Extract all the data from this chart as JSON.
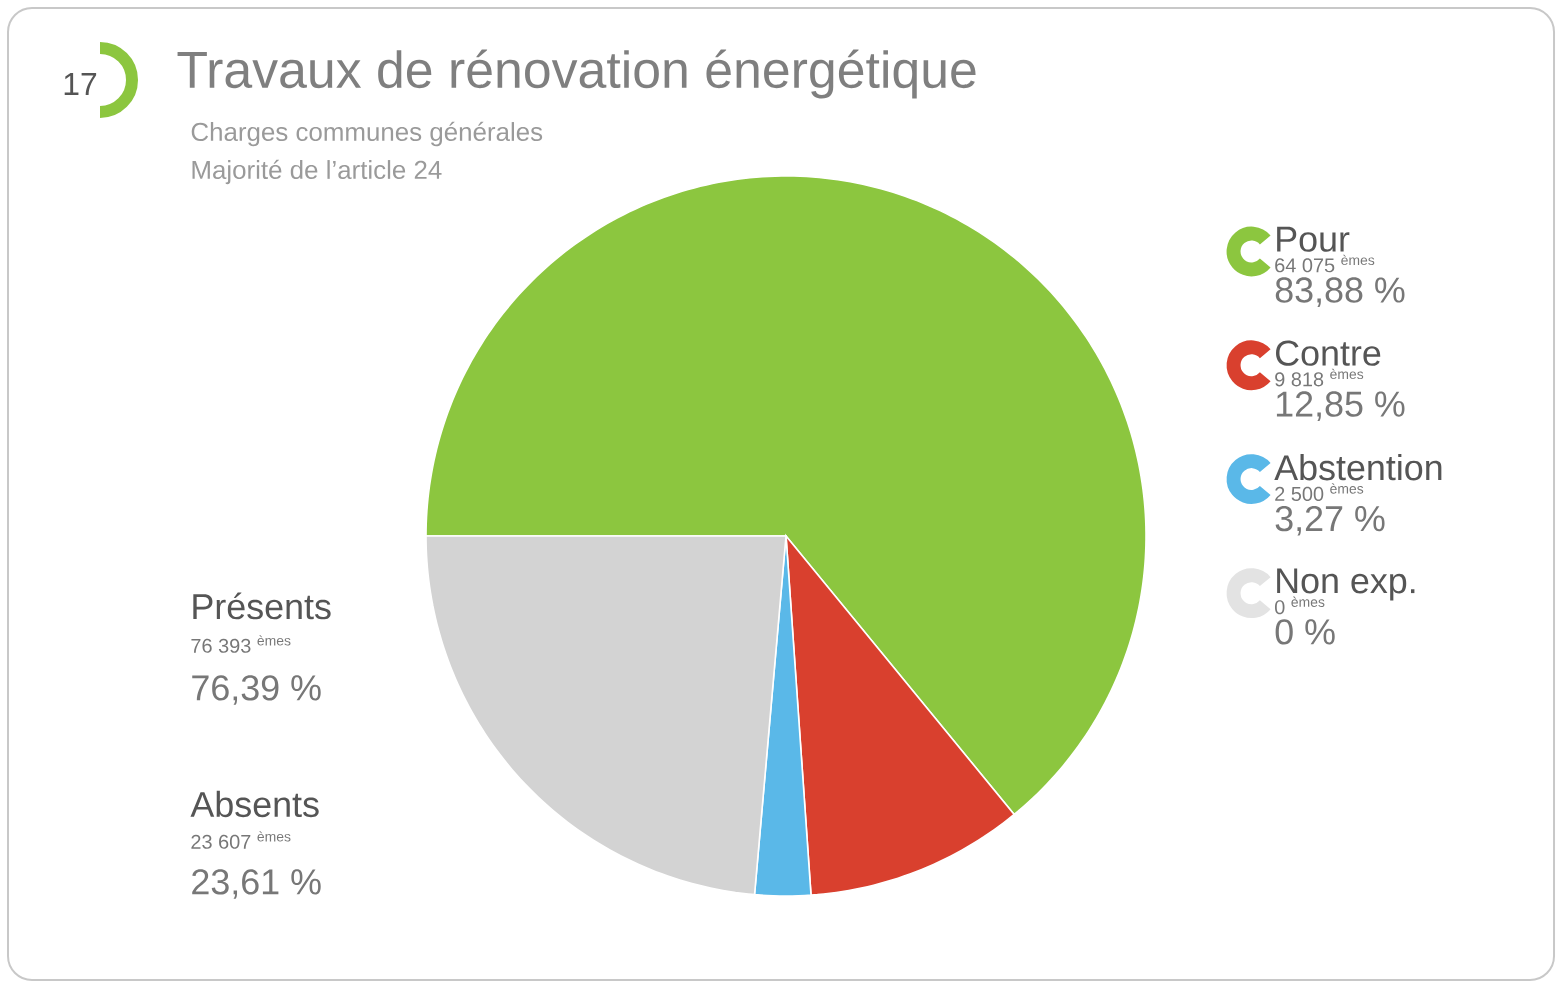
{
  "chart_data": {
    "type": "pie",
    "title": "Travaux de rénovation énergétique",
    "subtitle": "Charges communes générales",
    "categories": [
      "Pour",
      "Contre",
      "Abstention",
      "Non exp.",
      "Absents"
    ],
    "values": [
      64075,
      9818,
      2500,
      0,
      23607
    ],
    "colors": [
      "#8cc63f",
      "#d9402e",
      "#5ab8e8",
      "#e3e3e3",
      "#d3d3d3"
    ],
    "value_labels": [
      "64 075 $^{èmes}$",
      "9 818 $^{èmes}$",
      "2 500 $^{èmes}$",
      "0 $^{èmes}$",
      "23 607 $^{èmes}$"
    ],
    "legend": "right",
    "annotations": [
      "17",
      "Majorité de l’article 24",
      "83,88 %",
      "12,85 %",
      "3,27 %",
      "0 %",
      "Présents",
      "76 393 $^{èmes}$",
      "76,39 %",
      "23,61 %"
    ]
  }
}
